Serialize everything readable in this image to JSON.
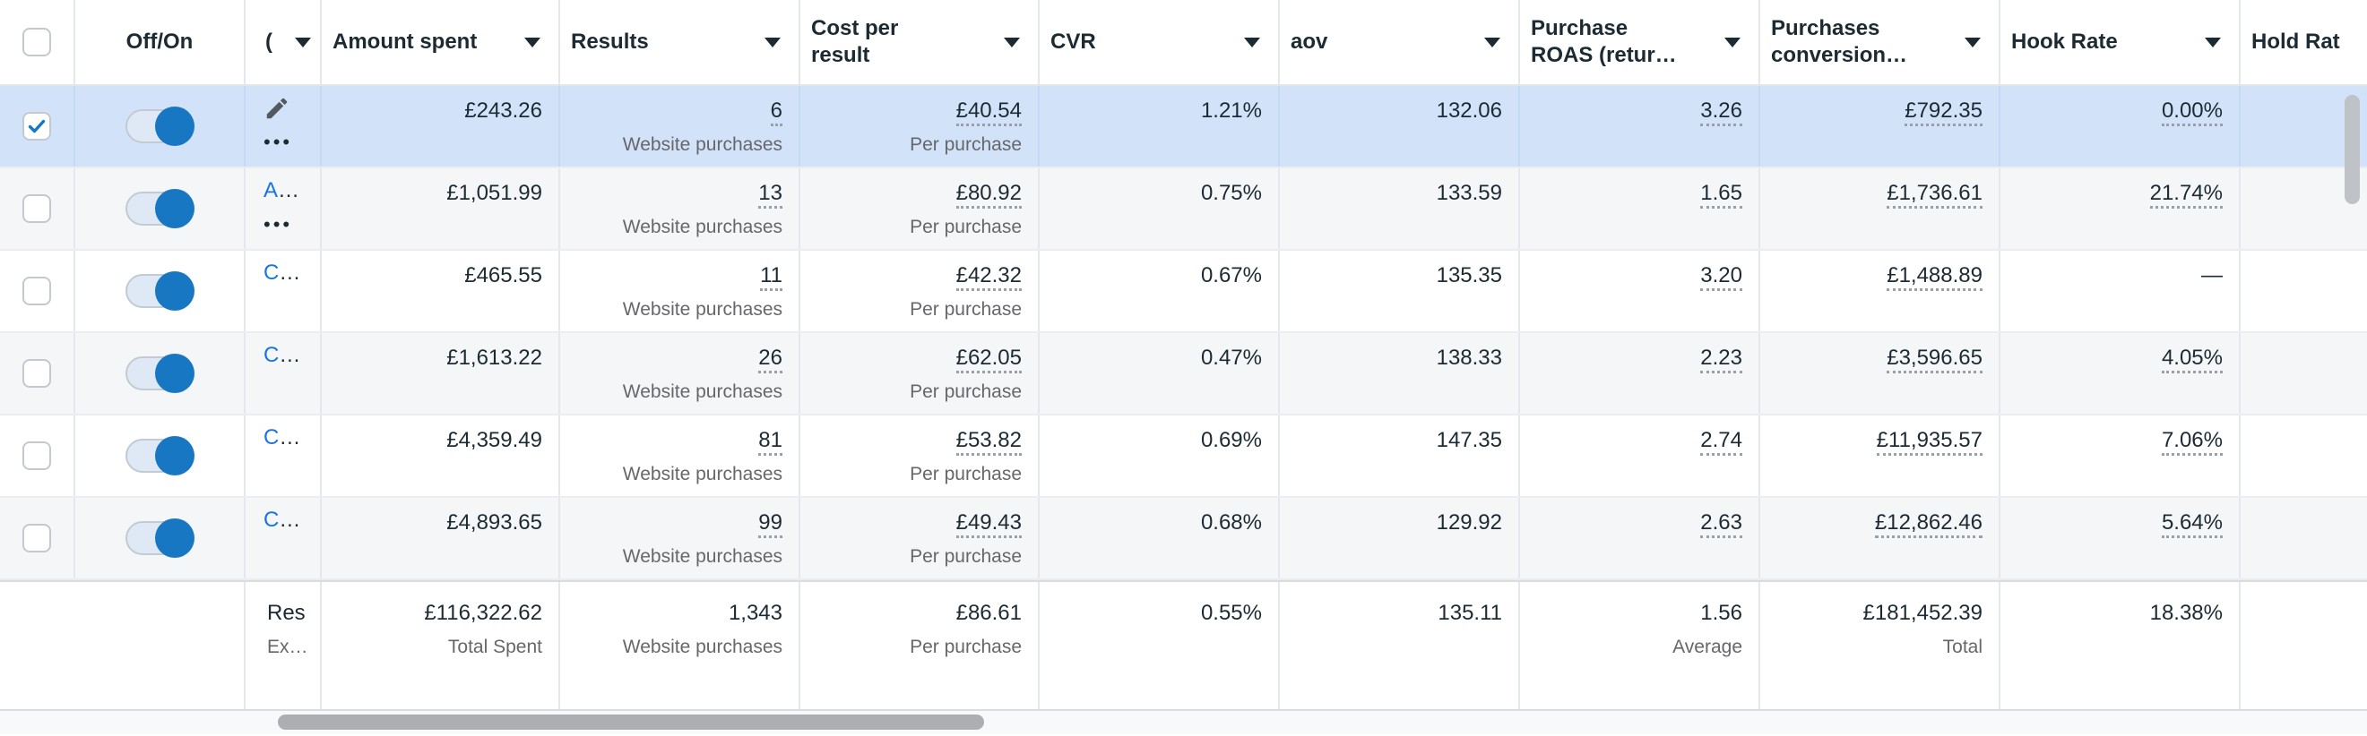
{
  "columns": [
    {
      "id": "select",
      "label": "",
      "caret": false,
      "type": "checkbox"
    },
    {
      "id": "off_on",
      "label": "Off/On",
      "caret": false,
      "type": "toggle"
    },
    {
      "id": "name",
      "label": "(",
      "caret": true,
      "type": "name"
    },
    {
      "id": "amount_spent",
      "label": "Amount spent",
      "caret": true,
      "type": "plain"
    },
    {
      "id": "results",
      "label": "Results",
      "caret": true,
      "type": "underlined"
    },
    {
      "id": "cost_per_result",
      "label": "Cost per result",
      "caret": true,
      "type": "underlined"
    },
    {
      "id": "cvr",
      "label": "CVR",
      "caret": true,
      "type": "plain"
    },
    {
      "id": "aov",
      "label": "aov",
      "caret": true,
      "type": "plain"
    },
    {
      "id": "purchase_roas",
      "label": "Purchase ROAS (retur…",
      "caret": true,
      "type": "underlined"
    },
    {
      "id": "purchases_conversion",
      "label": "Purchases conversion…",
      "caret": true,
      "type": "underlined"
    },
    {
      "id": "hook_rate",
      "label": "Hook Rate",
      "caret": true,
      "type": "plain"
    },
    {
      "id": "hold_rate",
      "label": "Hold Rat",
      "caret": false,
      "type": "plain"
    }
  ],
  "rows": [
    {
      "selected": true,
      "toggle_on": true,
      "name": {
        "icon": "pencil",
        "menu_dots": true
      },
      "amount_spent": "£243.26",
      "results": {
        "value": "6",
        "label": "Website purchases"
      },
      "cost_per_result": {
        "value": "£40.54",
        "label": "Per purchase"
      },
      "cvr": "1.21%",
      "aov": "132.06",
      "purchase_roas": "3.26",
      "purchases_conversion": "£792.35",
      "hook_rate": "0.00%",
      "hold_rate": ""
    },
    {
      "selected": false,
      "toggle_on": true,
      "name": {
        "link": "A…",
        "menu_dots": true
      },
      "amount_spent": "£1,051.99",
      "results": {
        "value": "13",
        "label": "Website purchases"
      },
      "cost_per_result": {
        "value": "£80.92",
        "label": "Per purchase"
      },
      "cvr": "0.75%",
      "aov": "133.59",
      "purchase_roas": "1.65",
      "purchases_conversion": "£1,736.61",
      "hook_rate": "21.74%",
      "hold_rate": ""
    },
    {
      "selected": false,
      "toggle_on": true,
      "name": {
        "link": "C…"
      },
      "amount_spent": "£465.55",
      "results": {
        "value": "11",
        "label": "Website purchases"
      },
      "cost_per_result": {
        "value": "£42.32",
        "label": "Per purchase"
      },
      "cvr": "0.67%",
      "aov": "135.35",
      "purchase_roas": "3.20",
      "purchases_conversion": "£1,488.89",
      "hook_rate": "—",
      "hold_rate": ""
    },
    {
      "selected": false,
      "toggle_on": true,
      "name": {
        "link": "C…"
      },
      "amount_spent": "£1,613.22",
      "results": {
        "value": "26",
        "label": "Website purchases"
      },
      "cost_per_result": {
        "value": "£62.05",
        "label": "Per purchase"
      },
      "cvr": "0.47%",
      "aov": "138.33",
      "purchase_roas": "2.23",
      "purchases_conversion": "£3,596.65",
      "hook_rate": "4.05%",
      "hold_rate": ""
    },
    {
      "selected": false,
      "toggle_on": true,
      "name": {
        "link": "C…"
      },
      "amount_spent": "£4,359.49",
      "results": {
        "value": "81",
        "label": "Website purchases"
      },
      "cost_per_result": {
        "value": "£53.82",
        "label": "Per purchase"
      },
      "cvr": "0.69%",
      "aov": "147.35",
      "purchase_roas": "2.74",
      "purchases_conversion": "£11,935.57",
      "hook_rate": "7.06%",
      "hold_rate": ""
    },
    {
      "selected": false,
      "toggle_on": true,
      "name": {
        "link": "C…"
      },
      "amount_spent": "£4,893.65",
      "results": {
        "value": "99",
        "label": "Website purchases"
      },
      "cost_per_result": {
        "value": "£49.43",
        "label": "Per purchase"
      },
      "cvr": "0.68%",
      "aov": "129.92",
      "purchase_roas": "2.63",
      "purchases_conversion": "£12,862.46",
      "hook_rate": "5.64%",
      "hold_rate": ""
    }
  ],
  "footer": {
    "name_line1": "Res",
    "name_line2": "Ex…",
    "amount_spent": {
      "value": "£116,322.62",
      "label": "Total Spent"
    },
    "results": {
      "value": "1,343",
      "label": "Website purchases"
    },
    "cost_per_result": {
      "value": "£86.61",
      "label": "Per purchase"
    },
    "cvr": {
      "value": "0.55%"
    },
    "aov": {
      "value": "135.11"
    },
    "purchase_roas": {
      "value": "1.56",
      "label": "Average"
    },
    "purchases_conversion": {
      "value": "£181,452.39",
      "label": "Total"
    },
    "hook_rate": {
      "value": "18.38%"
    },
    "hold_rate": {
      "value": ""
    }
  },
  "colors": {
    "selected_row_bg": "#D2E3F9",
    "zebra_row_bg": "#F5F6F7",
    "link_blue": "#1B74E4",
    "toggle_knob_blue": "#1877C2",
    "checkmark_blue": "#1877C2",
    "text_primary": "#1C2B33",
    "text_secondary": "#65676B"
  }
}
